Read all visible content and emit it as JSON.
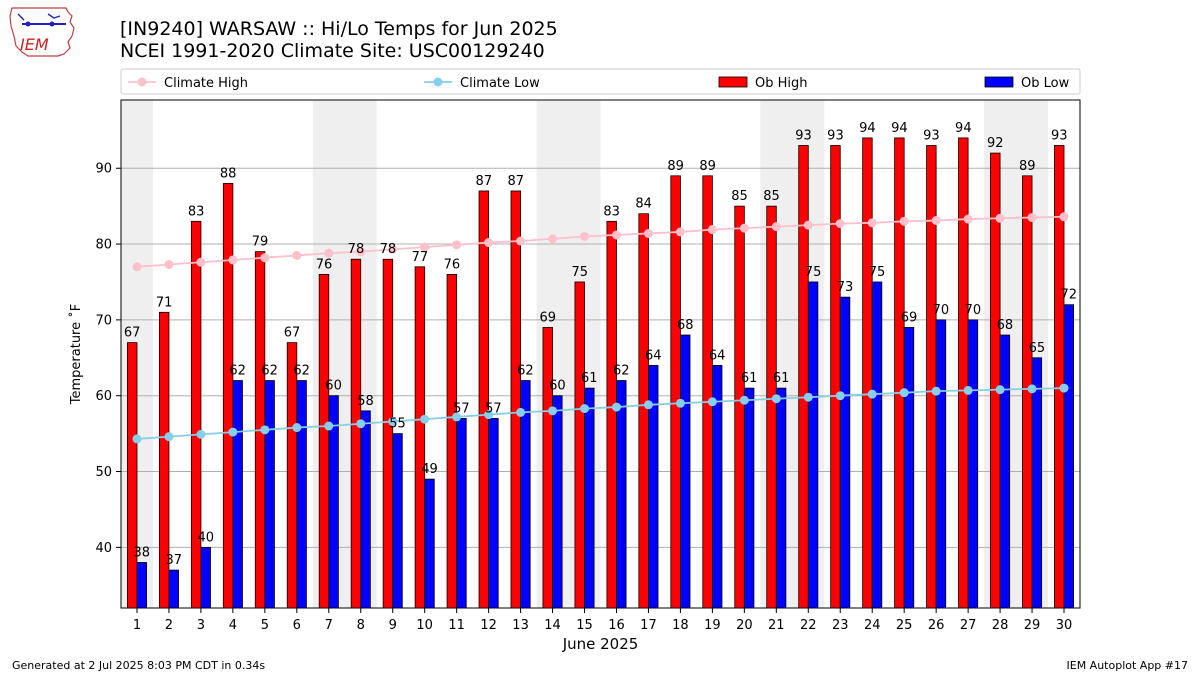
{
  "header": {
    "title_line1": "[IN9240] WARSAW :: Hi/Lo Temps for Jun 2025",
    "title_line2": "NCEI 1991-2020 Climate Site: USC00129240",
    "logo_text": "IEM"
  },
  "footer": {
    "generated": "Generated at 2 Jul 2025 8:03 PM CDT in 0.34s",
    "app": "IEM Autoplot App #17"
  },
  "chart_data": {
    "type": "bar",
    "xlabel": "June 2025",
    "ylabel": "Temperature ˚F",
    "ylim": [
      32,
      99
    ],
    "yticks": [
      40,
      50,
      60,
      70,
      80,
      90
    ],
    "grid": true,
    "legend_placement": "top",
    "weekend_shading": [
      [
        1,
        1
      ],
      [
        7,
        8
      ],
      [
        14,
        15
      ],
      [
        21,
        22
      ],
      [
        28,
        29
      ]
    ],
    "categories": [
      "1",
      "2",
      "3",
      "4",
      "5",
      "6",
      "7",
      "8",
      "9",
      "10",
      "11",
      "12",
      "13",
      "14",
      "15",
      "16",
      "17",
      "18",
      "19",
      "20",
      "21",
      "22",
      "23",
      "24",
      "25",
      "26",
      "27",
      "28",
      "29",
      "30"
    ],
    "series": [
      {
        "name": "Ob High",
        "kind": "bar",
        "color": "#ff0000",
        "values": [
          67,
          71,
          83,
          88,
          79,
          67,
          76,
          78,
          78,
          77,
          76,
          87,
          87,
          69,
          75,
          83,
          84,
          89,
          89,
          85,
          85,
          93,
          93,
          94,
          94,
          93,
          94,
          92,
          89,
          93
        ]
      },
      {
        "name": "Ob Low",
        "kind": "bar",
        "color": "#0000ff",
        "values": [
          38,
          37,
          40,
          62,
          62,
          62,
          60,
          58,
          55,
          49,
          57,
          57,
          62,
          60,
          61,
          62,
          64,
          68,
          64,
          61,
          61,
          75,
          73,
          75,
          69,
          70,
          70,
          68,
          65,
          72
        ]
      },
      {
        "name": "Climate High",
        "kind": "line",
        "color": "#ffc0cb",
        "values": [
          77.0,
          77.3,
          77.6,
          77.9,
          78.2,
          78.5,
          78.8,
          79.0,
          79.3,
          79.6,
          79.9,
          80.2,
          80.4,
          80.7,
          81.0,
          81.2,
          81.4,
          81.6,
          81.9,
          82.1,
          82.3,
          82.5,
          82.7,
          82.8,
          83.0,
          83.1,
          83.3,
          83.4,
          83.5,
          83.6
        ]
      },
      {
        "name": "Climate Low",
        "kind": "line",
        "color": "#87ceeb",
        "values": [
          54.3,
          54.6,
          54.9,
          55.2,
          55.5,
          55.8,
          56.0,
          56.3,
          56.6,
          56.9,
          57.2,
          57.5,
          57.8,
          58.0,
          58.3,
          58.5,
          58.8,
          59.0,
          59.2,
          59.4,
          59.6,
          59.8,
          60.0,
          60.2,
          60.4,
          60.6,
          60.7,
          60.8,
          60.9,
          61.0
        ]
      }
    ]
  }
}
